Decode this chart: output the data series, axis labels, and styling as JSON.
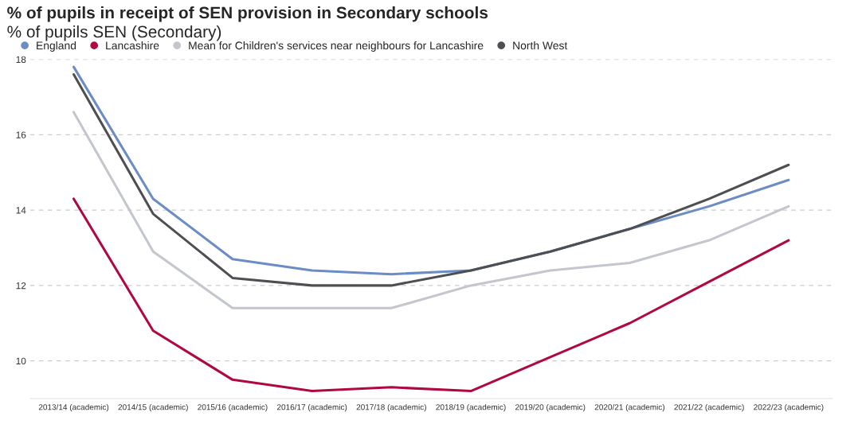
{
  "chart_data": {
    "type": "line",
    "title": "% of pupils in receipt of SEN provision in Secondary schools",
    "subtitle": "% of pupils SEN (Secondary)",
    "categories": [
      "2013/14 (academic)",
      "2014/15 (academic)",
      "2015/16 (academic)",
      "2016/17 (academic)",
      "2017/18 (academic)",
      "2018/19 (academic)",
      "2019/20 (academic)",
      "2020/21 (academic)",
      "2021/22 (academic)",
      "2022/23 (academic)"
    ],
    "series": [
      {
        "name": "England",
        "color": "#6b8cc4",
        "values": [
          17.8,
          14.3,
          12.7,
          12.4,
          12.3,
          12.4,
          12.9,
          13.5,
          14.1,
          14.8
        ]
      },
      {
        "name": "Lancashire",
        "color": "#b0093f",
        "values": [
          14.3,
          10.8,
          9.5,
          9.2,
          9.3,
          9.2,
          10.1,
          11.0,
          12.1,
          13.2
        ]
      },
      {
        "name": "Mean for Children's services near neighbours for Lancashire",
        "color": "#c3c6cc",
        "values": [
          16.6,
          12.9,
          11.4,
          11.4,
          11.4,
          12.0,
          12.4,
          12.6,
          13.2,
          14.1
        ]
      },
      {
        "name": "North West",
        "color": "#4d4f53",
        "values": [
          17.6,
          13.9,
          12.2,
          12.0,
          12.0,
          12.4,
          12.9,
          13.5,
          14.3,
          15.2
        ]
      }
    ],
    "ylim": [
      9.0,
      18
    ],
    "yticks": [
      10,
      12,
      14,
      16,
      18
    ],
    "grid": "y",
    "legend": "top left",
    "marker": "none",
    "line_style": "solid"
  }
}
